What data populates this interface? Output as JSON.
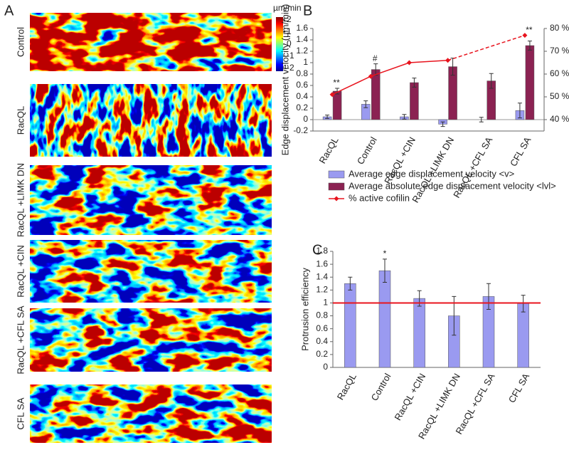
{
  "panel_a": {
    "label": "A",
    "unit": "µm/min",
    "colorbar_ticks": [
      2,
      1,
      0,
      -1,
      -2
    ],
    "rows": [
      "Control",
      "RacQL",
      "RacQL +LIMK DN",
      "RacQL +CIN",
      "RacQL +CFL SA",
      "CFL SA"
    ]
  },
  "chart_data": [
    {
      "type": "bar",
      "panel": "B",
      "categories": [
        "RacQL",
        "Control",
        "RacQL +CIN",
        "RacQL +LIMK DN",
        "RacQL +CFL SA",
        "CFL SA"
      ],
      "y_label": "Edge displacement velocity (µm/min)",
      "y2_label": "% active cofilin",
      "ylim": [
        -0.2,
        1.6
      ],
      "yticks": [
        -0.2,
        0,
        0.2,
        0.4,
        0.6,
        0.8,
        1,
        1.2,
        1.4,
        1.6
      ],
      "y2lim": [
        35,
        80
      ],
      "y2ticks": [
        {
          "value": 40,
          "label": "40 %"
        },
        {
          "value": 50,
          "label": "50 %"
        },
        {
          "value": 60,
          "label": "60 %"
        },
        {
          "value": 70,
          "label": "70 %"
        },
        {
          "value": 80,
          "label": "80 %"
        }
      ],
      "series": [
        {
          "name": "Average edge displacement velocity <v>",
          "color": "#9a9af0",
          "values": [
            0.05,
            0.27,
            0.05,
            -0.08,
            0.0,
            0.16
          ],
          "errors": [
            0.03,
            0.06,
            0.04,
            0.04,
            0.04,
            0.13
          ]
        },
        {
          "name": "Average absolute edge displacement velocity <lvl>",
          "color": "#8b2252",
          "values": [
            0.5,
            0.88,
            0.65,
            0.93,
            0.68,
            1.3
          ],
          "errors": [
            0.05,
            0.1,
            0.08,
            0.15,
            0.13,
            0.08
          ]
        },
        {
          "name": "% active cofilin",
          "color": "#e8141e",
          "axis": "y2",
          "values": [
            51,
            59,
            65,
            66,
            null,
            77
          ]
        }
      ],
      "significance": [
        "**",
        "#",
        null,
        null,
        null,
        "**"
      ]
    },
    {
      "type": "bar",
      "panel": "C",
      "categories": [
        "RacQL",
        "Control",
        "RacQL +CIN",
        "RacQL +LIMK DN",
        "RacQL +CFL SA",
        "CFL SA"
      ],
      "y_label": "Protrusion efficiency",
      "ylim": [
        0,
        1.8
      ],
      "yticks": [
        0,
        0.2,
        0.4,
        0.6,
        0.8,
        1,
        1.2,
        1.4,
        1.6,
        1.8
      ],
      "reference_line": 1,
      "reference_color": "#e8141e",
      "series": [
        {
          "color": "#9a9af0",
          "values": [
            1.3,
            1.5,
            1.07,
            0.8,
            1.1,
            0.99
          ],
          "errors": [
            0.1,
            0.18,
            0.12,
            0.3,
            0.2,
            0.13
          ]
        }
      ],
      "significance": [
        null,
        "*",
        null,
        null,
        null,
        null
      ]
    }
  ]
}
